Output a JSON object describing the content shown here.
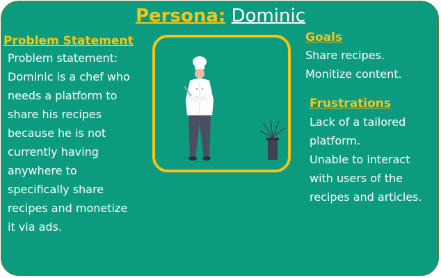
{
  "persona": {
    "prefix": "Persona:",
    "name": "Dominic"
  },
  "problem": {
    "heading": "Problem Statement",
    "lines": [
      "Problem statement:",
      "Dominic is a chef who",
      "needs a platform to",
      "share his recipes",
      "because he is not",
      "currently having",
      "anywhere to",
      "specifically share",
      "recipes and monetize",
      "it via ads."
    ]
  },
  "goals": {
    "heading": "Goals",
    "lines": [
      "Share recipes.",
      "Monitize content."
    ]
  },
  "frustrations": {
    "heading": "Frustrations",
    "lines": [
      "Lack of a tailored",
      "platform.",
      "Unable to interact",
      "with users of the",
      "recipes and articles."
    ]
  },
  "illustration": {
    "subject": "chef-illustration",
    "colors": {
      "frame": "#f5c518",
      "background": "#0c9b7f",
      "jacket": "#ffffff",
      "pants": "#4a4f63",
      "skin": "#f0b9a3",
      "pot": "#3d4150"
    }
  }
}
